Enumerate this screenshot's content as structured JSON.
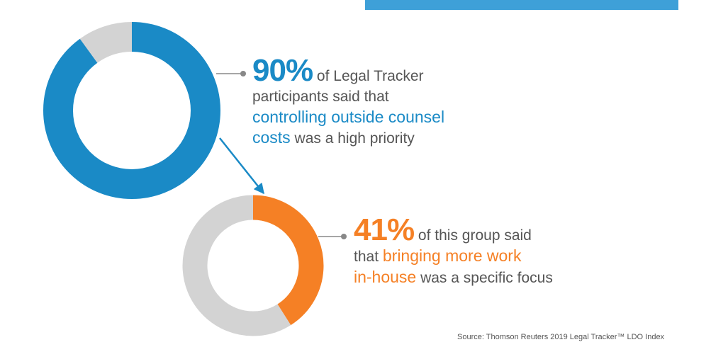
{
  "colors": {
    "blue": "#1a8ac6",
    "orange": "#f58025",
    "gray": "#d3d3d3",
    "top_bar": "#3ea0d8"
  },
  "chart_data": [
    {
      "type": "pie",
      "style": "donut",
      "values": [
        90,
        10
      ],
      "colors": [
        "#1a8ac6",
        "#d3d3d3"
      ],
      "callout": {
        "value": "90%",
        "line1": "of Legal Tracker",
        "line2": "participants said that",
        "highlight_a": "controlling outside counsel",
        "highlight_b": "costs",
        "tail": "was a high priority"
      }
    },
    {
      "type": "pie",
      "style": "donut",
      "values": [
        41,
        59
      ],
      "colors": [
        "#f58025",
        "#d3d3d3"
      ],
      "callout": {
        "value": "41%",
        "line1": "of this group said",
        "lead": "that",
        "highlight_a": "bringing more work",
        "highlight_b": "in-house",
        "tail": "was a specific focus"
      }
    }
  ],
  "source": "Source: Thomson Reuters 2019 Legal Tracker™ LDO Index"
}
